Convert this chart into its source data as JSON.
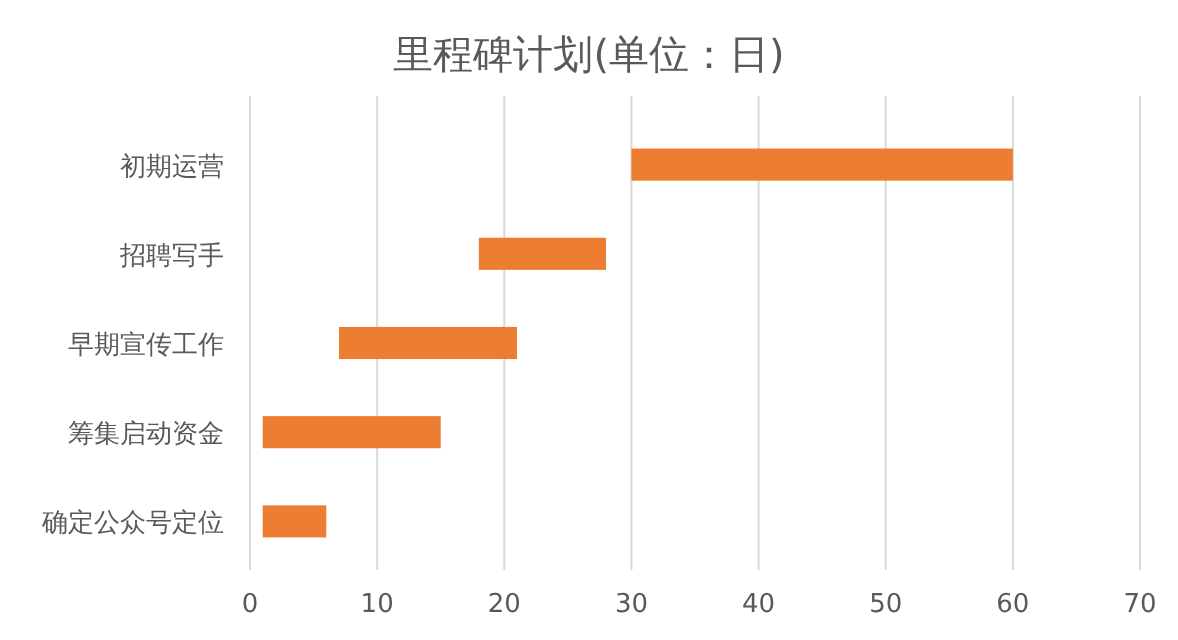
{
  "chart_data": {
    "type": "bar",
    "orientation": "horizontal",
    "title": "里程碑计划(单位：日)",
    "categories": [
      "初期运营",
      "招聘写手",
      "早期宣传工作",
      "筹集启动资金",
      "确定公众号定位"
    ],
    "values": [
      30,
      10,
      14,
      14,
      5
    ],
    "base": [
      30,
      18,
      7,
      1,
      1
    ],
    "color": "#ed7d31",
    "xlim": [
      0,
      70
    ],
    "xticks": [
      0,
      10,
      20,
      30,
      40,
      50,
      60,
      70
    ],
    "grid": "x"
  }
}
